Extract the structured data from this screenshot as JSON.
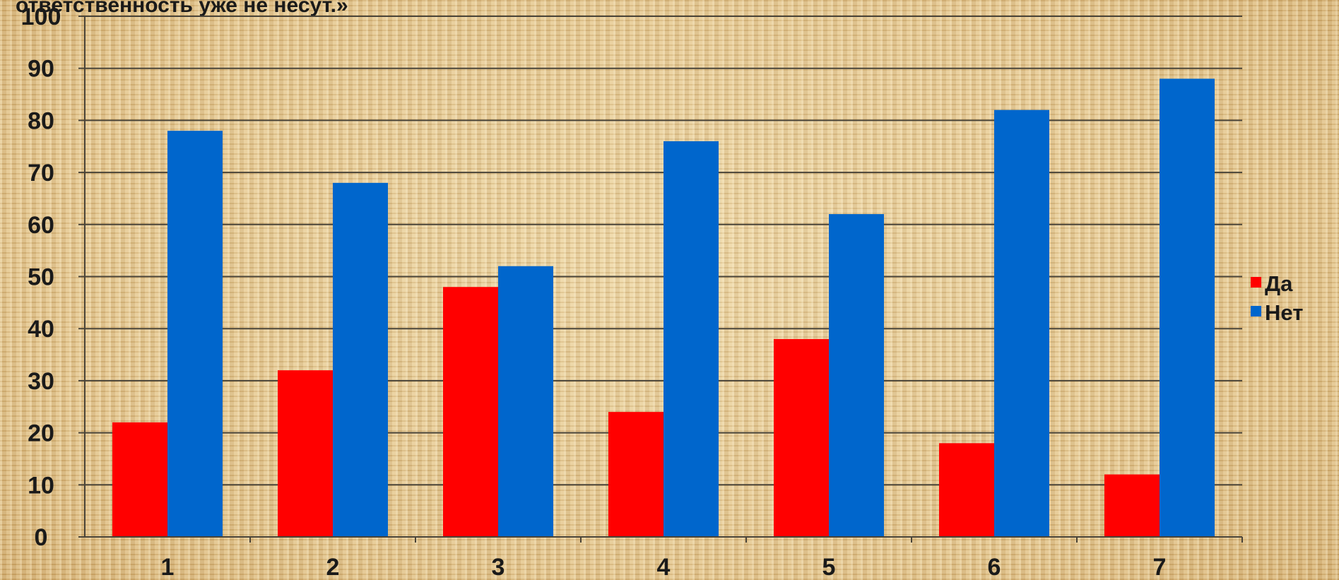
{
  "chart_data": {
    "type": "bar",
    "title": "ответственность уже не несут.»",
    "categories": [
      "1",
      "2",
      "3",
      "4",
      "5",
      "6",
      "7"
    ],
    "series": [
      {
        "name": "Да",
        "color": "#ff0000",
        "values": [
          22,
          32,
          48,
          24,
          38,
          18,
          12
        ]
      },
      {
        "name": "Нет",
        "color": "#0066cc",
        "values": [
          78,
          68,
          52,
          76,
          62,
          82,
          88
        ]
      }
    ],
    "ylim": [
      0,
      100
    ],
    "yticks": [
      "0",
      "10",
      "20",
      "30",
      "40",
      "50",
      "60",
      "70",
      "80",
      "90",
      "100"
    ],
    "grid": true,
    "legend_position": "right"
  }
}
